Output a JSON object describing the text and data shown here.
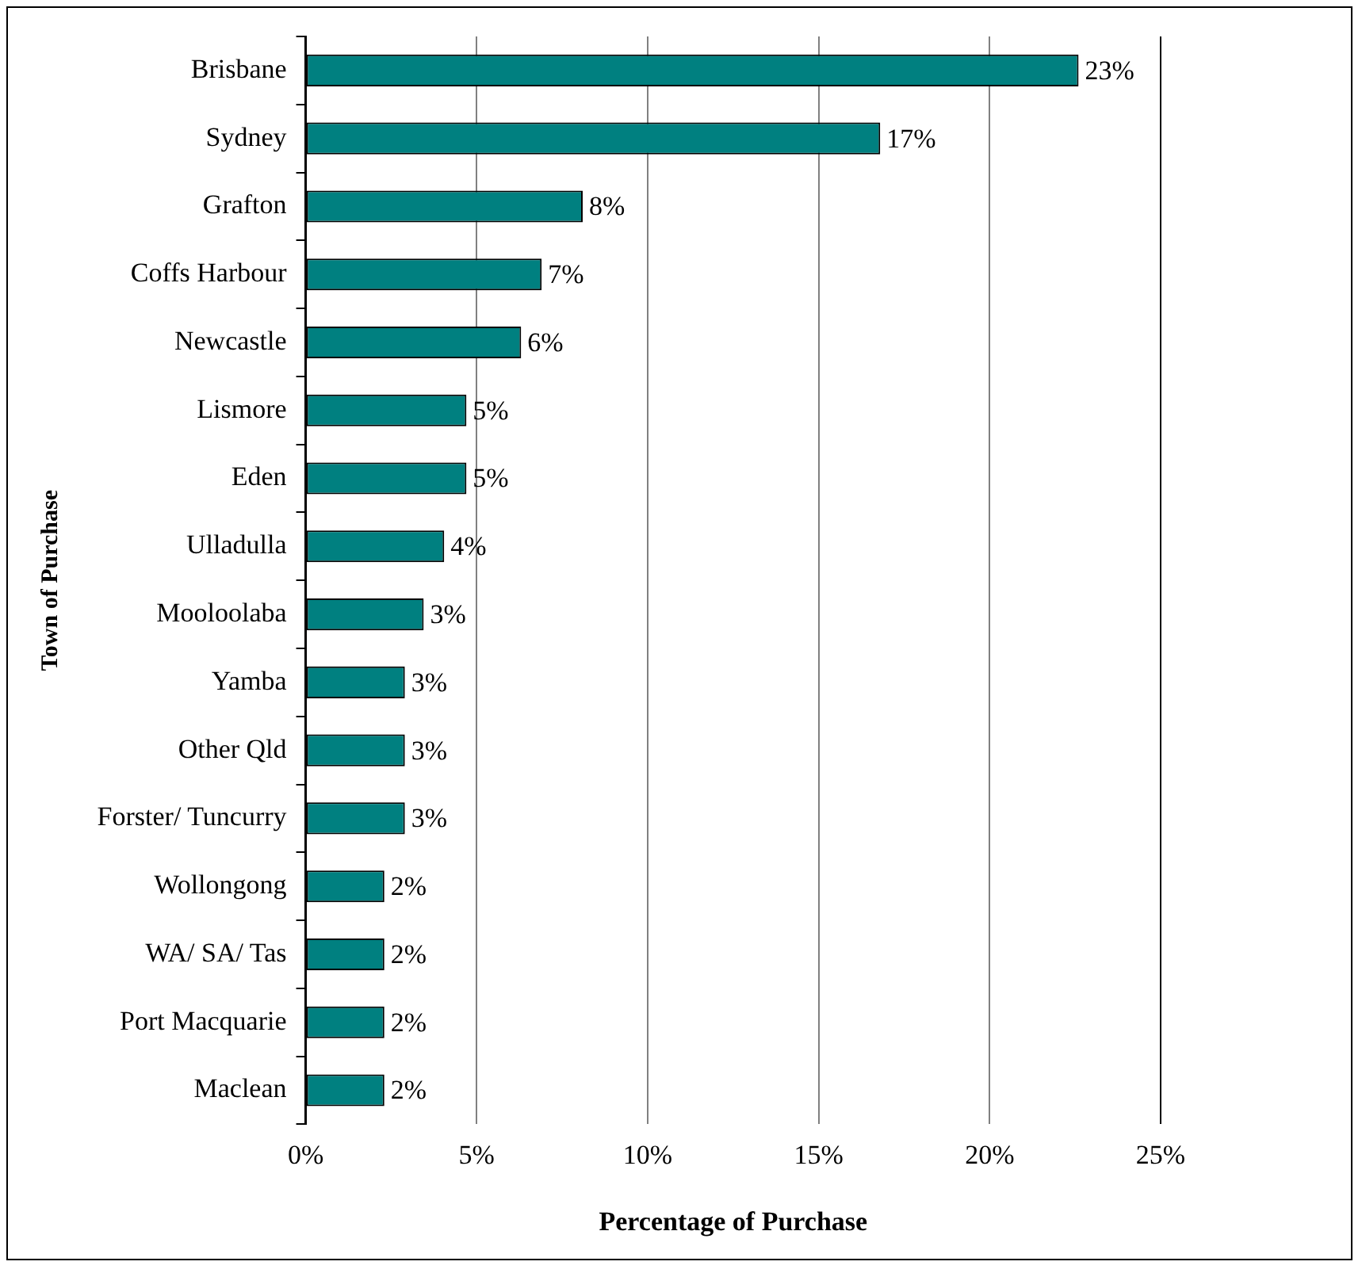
{
  "chart_data": {
    "type": "bar",
    "orientation": "horizontal",
    "xlabel": "Percentage of Purchase",
    "ylabel": "Town of Purchase",
    "categories": [
      "Brisbane",
      "Sydney",
      "Grafton",
      "Coffs Harbour",
      "Newcastle",
      "Lismore",
      "Eden",
      "Ulladulla",
      "Mooloolaba",
      "Yamba",
      "Other Qld",
      "Forster/ Tuncurry",
      "Wollongong",
      "WA/ SA/ Tas",
      "Port Macquarie",
      "Maclean"
    ],
    "values": [
      22.6,
      16.8,
      8.1,
      6.9,
      6.3,
      4.7,
      4.7,
      4.05,
      3.45,
      2.9,
      2.9,
      2.9,
      2.3,
      2.3,
      2.3,
      2.3
    ],
    "value_labels": [
      "23%",
      "17%",
      "8%",
      "7%",
      "6%",
      "5%",
      "5%",
      "4%",
      "3%",
      "3%",
      "3%",
      "3%",
      "2%",
      "2%",
      "2%",
      "2%"
    ],
    "color": "#008080",
    "xlim": [
      0,
      25
    ],
    "xticks": [
      {
        "value": 0,
        "label": "0%"
      },
      {
        "value": 5,
        "label": "5%"
      },
      {
        "value": 10,
        "label": "10%"
      },
      {
        "value": 15,
        "label": "15%"
      },
      {
        "value": 20,
        "label": "20%"
      },
      {
        "value": 25,
        "label": "25%"
      }
    ],
    "grid": "x",
    "legend": false
  }
}
